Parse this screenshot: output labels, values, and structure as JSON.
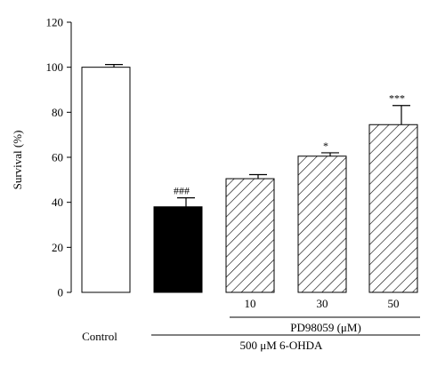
{
  "chart_data": {
    "type": "bar",
    "ylabel": "Survival (%)",
    "ylim": [
      0,
      120
    ],
    "yticks": [
      0,
      20,
      40,
      60,
      80,
      100,
      120
    ],
    "grid": false,
    "bars": [
      {
        "value": 100,
        "error": 1.2,
        "annotation": "",
        "fill": "white"
      },
      {
        "value": 38,
        "error": 4.0,
        "annotation": "###",
        "fill": "black"
      },
      {
        "value": 50.5,
        "error": 1.8,
        "annotation": "",
        "fill": "hatched"
      },
      {
        "value": 60.5,
        "error": 1.5,
        "annotation": "*",
        "fill": "hatched"
      },
      {
        "value": 74.5,
        "error": 8.5,
        "annotation": "***",
        "fill": "hatched"
      }
    ],
    "dose_labels": [
      "10",
      "30",
      "50"
    ],
    "treatment_label": "PD98059 (μM)",
    "group_label": "500 μM 6-OHDA",
    "control_label": "Control"
  }
}
